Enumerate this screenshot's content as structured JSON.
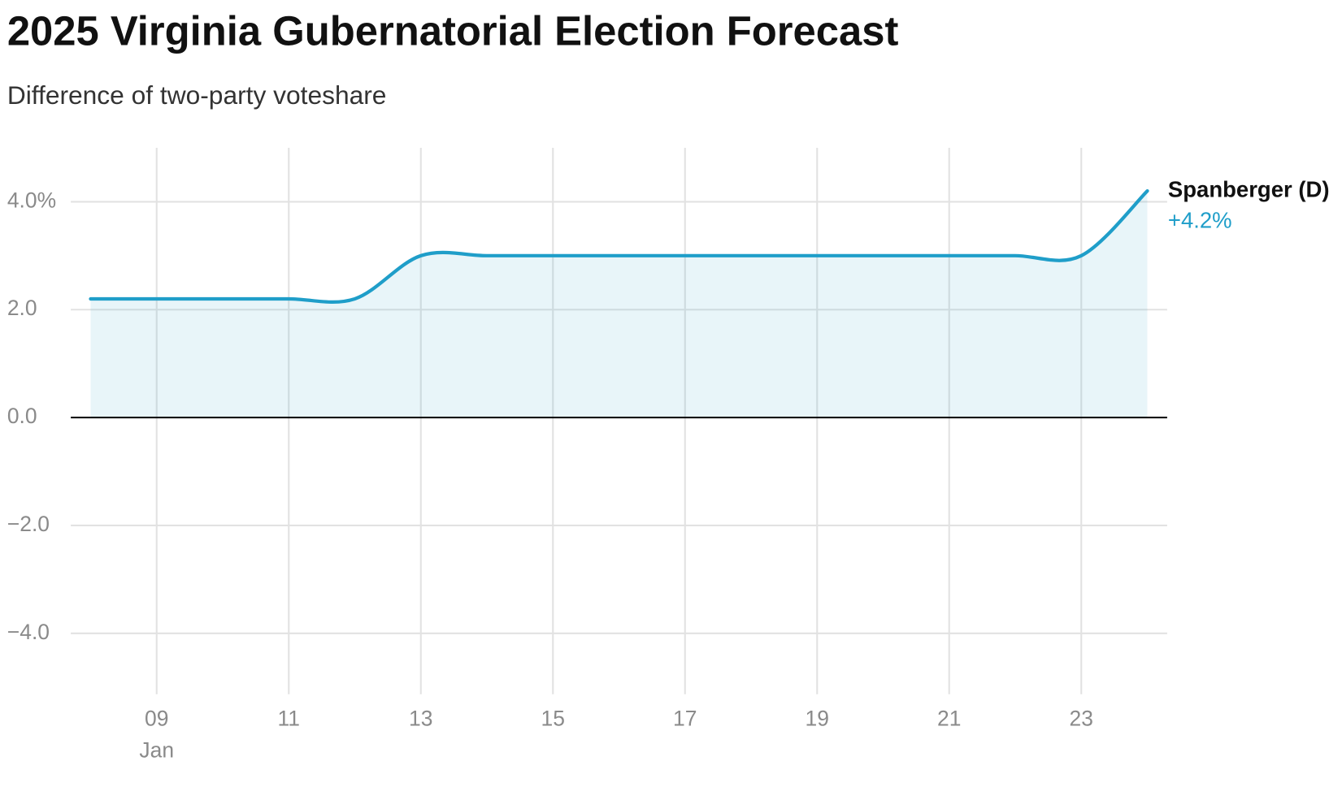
{
  "chart_data": {
    "type": "area-line",
    "title": "2025 Virginia Gubernatorial Election Forecast",
    "subtitle": "Difference of two-party voteshare",
    "x": [
      8,
      9,
      10,
      11,
      12,
      13,
      14,
      15,
      16,
      17,
      18,
      19,
      20,
      21,
      22,
      23,
      24
    ],
    "x_month_label": "Jan",
    "series": [
      {
        "name": "Spanberger (D)",
        "color": "#1f9ec9",
        "values": [
          2.2,
          2.2,
          2.2,
          2.2,
          2.2,
          3.0,
          3.0,
          3.0,
          3.0,
          3.0,
          3.0,
          3.0,
          3.0,
          3.0,
          3.0,
          3.0,
          4.2
        ],
        "value_labels": [
          null,
          null,
          null,
          null,
          null,
          null,
          null,
          null,
          null,
          null,
          null,
          null,
          null,
          null,
          null,
          null,
          "+4.2%"
        ]
      }
    ],
    "xlim": [
      7.7,
      24.3
    ],
    "xticks": [
      {
        "value": 9,
        "label": "09"
      },
      {
        "value": 11,
        "label": "11"
      },
      {
        "value": 13,
        "label": "13"
      },
      {
        "value": 15,
        "label": "15"
      },
      {
        "value": 17,
        "label": "17"
      },
      {
        "value": 19,
        "label": "19"
      },
      {
        "value": 21,
        "label": "21"
      },
      {
        "value": 23,
        "label": "23"
      }
    ],
    "ylim": [
      -5,
      5
    ],
    "yticks": [
      {
        "value": 4,
        "label": "4.0%"
      },
      {
        "value": 2,
        "label": "2.0"
      },
      {
        "value": 0,
        "label": "0.0"
      },
      {
        "value": -2,
        "label": "−2.0"
      },
      {
        "value": -4,
        "label": "−4.0"
      }
    ],
    "grid": true
  }
}
